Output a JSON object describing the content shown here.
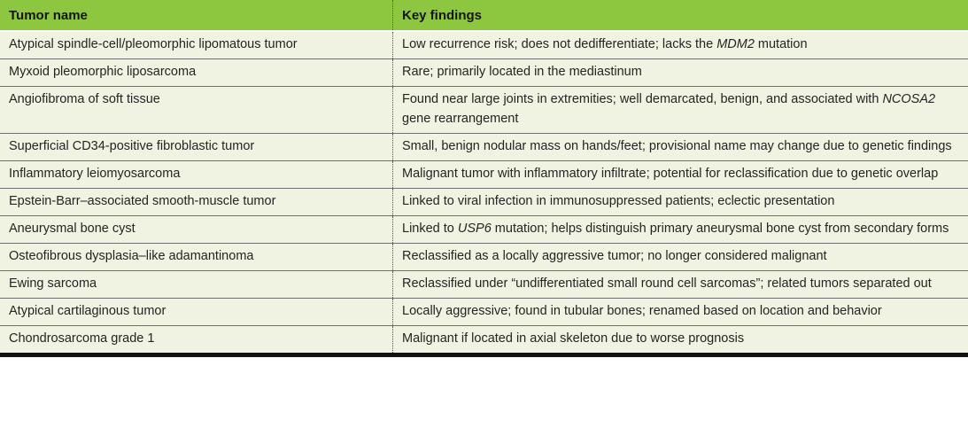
{
  "table": {
    "columns": [
      {
        "label": "Tumor name"
      },
      {
        "label": "Key findings"
      }
    ],
    "rows": [
      {
        "tumor": "Atypical spindle-cell/pleomorphic lipomatous tumor",
        "findings": [
          {
            "t": "Low recurrence risk; does not dedifferentiate; lacks the "
          },
          {
            "t": "MDM2",
            "i": true
          },
          {
            "t": " mutation"
          }
        ]
      },
      {
        "tumor": "Myxoid pleomorphic liposarcoma",
        "findings": [
          {
            "t": "Rare; primarily located in the mediastinum"
          }
        ]
      },
      {
        "tumor": "Angiofibroma of soft tissue",
        "findings": [
          {
            "t": "Found near large joints in extremities; well demarcated, benign, and associated with "
          },
          {
            "t": "NCOSA2",
            "i": true
          },
          {
            "t": " gene rearrangement"
          }
        ]
      },
      {
        "tumor": "Superficial CD34-positive fibroblastic tumor",
        "findings": [
          {
            "t": "Small, benign nodular mass on hands/feet; provisional name may change due to genetic findings"
          }
        ]
      },
      {
        "tumor": "Inflammatory leiomyosarcoma",
        "findings": [
          {
            "t": "Malignant tumor with inflammatory infiltrate; potential for reclassification due to genetic overlap"
          }
        ]
      },
      {
        "tumor": "Epstein-Barr–associated smooth-muscle tumor",
        "findings": [
          {
            "t": "Linked to viral infection in immunosuppressed patients; eclectic presentation"
          }
        ]
      },
      {
        "tumor": "Aneurysmal bone cyst",
        "findings": [
          {
            "t": "Linked to "
          },
          {
            "t": "USP6",
            "i": true
          },
          {
            "t": " mutation; helps distinguish primary aneurysmal bone cyst from secondary forms"
          }
        ]
      },
      {
        "tumor": "Osteofibrous dysplasia–like adamantinoma",
        "findings": [
          {
            "t": "Reclassified as a locally aggressive tumor; no longer considered malignant"
          }
        ]
      },
      {
        "tumor": "Ewing sarcoma",
        "findings": [
          {
            "t": "Reclassified under “undifferentiated small round cell sarcomas”; related tumors separated out"
          }
        ]
      },
      {
        "tumor": "Atypical cartilaginous tumor",
        "findings": [
          {
            "t": "Locally aggressive; found in tubular bones; renamed based on location and behavior"
          }
        ]
      },
      {
        "tumor": "Chondrosarcoma grade 1",
        "findings": [
          {
            "t": "Malignant if located in axial skeleton due to worse prognosis"
          }
        ]
      }
    ]
  },
  "colors": {
    "header_green": "#8dc63f",
    "header_text": "#161616",
    "row_bg": "#f0f3e2",
    "body_text": "#242424",
    "row_rule": "#6d6e70",
    "header_rule": "#fbfcf4",
    "column_divider": "#4f5052",
    "bottom_bar": "#121212"
  }
}
